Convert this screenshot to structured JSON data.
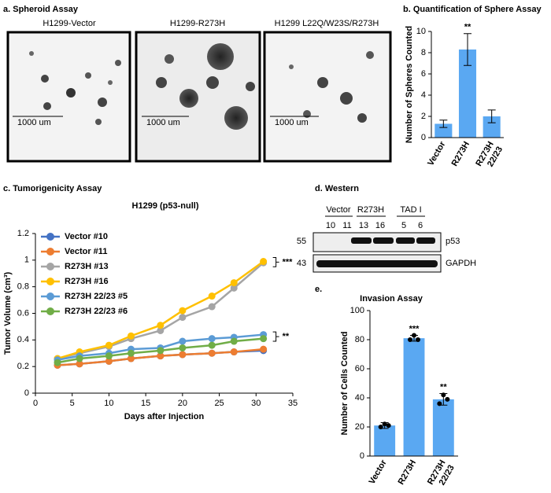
{
  "spheroid_assay": {
    "panel_label": "a. Spheroid Assay",
    "images": [
      {
        "title": "H1299-Vector",
        "scale_bar": "1000 um"
      },
      {
        "title": "H1299-R273H",
        "scale_bar": "1000 um"
      },
      {
        "title": "H1299  L22Q/W23S/R273H",
        "scale_bar": "1000 um"
      }
    ]
  },
  "western": {
    "panel_label": "d. Western",
    "groups": [
      "Vector",
      "R273H",
      "TAD I"
    ],
    "lanes": [
      "10",
      "11",
      "13",
      "16",
      "5",
      "6"
    ],
    "markers": [
      "55",
      "43"
    ],
    "proteins": [
      "p53",
      "GAPDH"
    ]
  },
  "chart_data": [
    {
      "type": "bar",
      "panel_label": "b. Quantification of Sphere Assay",
      "y_label": "Number of Spheres Counted",
      "categories": [
        "Vector",
        "R273H",
        "R273H 22/23"
      ],
      "values": [
        1.3,
        8.3,
        2.0
      ],
      "errors": [
        0.35,
        1.5,
        0.6
      ],
      "significance": [
        null,
        "**",
        null
      ],
      "color": "#5aa8f2",
      "ylim": [
        0,
        10
      ],
      "yticks": [
        0,
        2,
        4,
        6,
        8,
        10
      ]
    },
    {
      "type": "line",
      "panel_label": "c. Tumorigenicity Assay",
      "title": "H1299 (p53-null)",
      "x_label": "Days after Injection",
      "y_label": "Tumor Volume (cm³)",
      "x": [
        3,
        6,
        10,
        13,
        17,
        20,
        24,
        27,
        31
      ],
      "series": [
        {
          "name": "Vector #10",
          "color": "#4472c4",
          "values": [
            0.21,
            0.22,
            0.24,
            0.26,
            0.28,
            0.29,
            0.3,
            0.31,
            0.32
          ]
        },
        {
          "name": "Vector #11",
          "color": "#ed7d31",
          "values": [
            0.21,
            0.22,
            0.24,
            0.26,
            0.28,
            0.29,
            0.3,
            0.31,
            0.33
          ]
        },
        {
          "name": "R273H #13",
          "color": "#a5a5a5",
          "values": [
            0.26,
            0.3,
            0.35,
            0.41,
            0.47,
            0.57,
            0.65,
            0.79,
            0.98
          ]
        },
        {
          "name": "R273H #16",
          "color": "#ffc000",
          "values": [
            0.26,
            0.31,
            0.36,
            0.43,
            0.51,
            0.62,
            0.73,
            0.83,
            0.99
          ]
        },
        {
          "name": "R273H 22/23 #5",
          "color": "#5b9bd5",
          "values": [
            0.25,
            0.28,
            0.3,
            0.33,
            0.34,
            0.39,
            0.41,
            0.42,
            0.44
          ]
        },
        {
          "name": "R273H 22/23 #6",
          "color": "#70ad47",
          "values": [
            0.23,
            0.26,
            0.28,
            0.3,
            0.32,
            0.34,
            0.36,
            0.39,
            0.41
          ]
        }
      ],
      "annotations": [
        "***",
        "**"
      ],
      "xlim": [
        0,
        35
      ],
      "xticks": [
        0,
        5,
        10,
        15,
        20,
        25,
        30,
        35
      ],
      "ylim": [
        0,
        1.2
      ],
      "yticks": [
        0,
        0.2,
        0.4,
        0.6,
        0.8,
        1,
        1.2
      ]
    },
    {
      "type": "bar",
      "panel_label": "e.",
      "title": "Invasion Assay",
      "y_label": "Number of Cells Counted",
      "categories": [
        "Vector",
        "R273H",
        "R273H 22/23"
      ],
      "values": [
        21,
        81,
        39
      ],
      "errors": [
        2,
        2,
        4
      ],
      "points": [
        [
          20,
          22,
          21
        ],
        [
          80,
          83,
          80
        ],
        [
          36,
          42,
          39
        ]
      ],
      "significance": [
        null,
        "***",
        "**"
      ],
      "color": "#5aa8f2",
      "ylim": [
        0,
        100
      ],
      "yticks": [
        0,
        20,
        40,
        60,
        80,
        100
      ]
    }
  ]
}
